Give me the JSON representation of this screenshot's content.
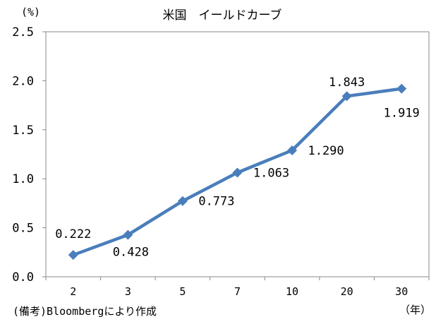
{
  "chart_data": {
    "type": "line",
    "title": "米国　イールドカーブ",
    "ylabel": "(%)",
    "xlabel": "（年）",
    "note": "(備考)Bloombergにより作成",
    "categories": [
      "2",
      "3",
      "5",
      "7",
      "10",
      "20",
      "30"
    ],
    "yticks": [
      "0.0",
      "0.5",
      "1.0",
      "1.5",
      "2.0",
      "2.5"
    ],
    "ylim": [
      0,
      2.5
    ],
    "grid": false,
    "series": [
      {
        "values": [
          0.222,
          0.428,
          0.773,
          1.063,
          1.29,
          1.843,
          1.919
        ],
        "labels": [
          "0.222",
          "0.428",
          "0.773",
          "1.063",
          "1.290",
          "1.843",
          "1.919"
        ],
        "color": "#4a7ebb"
      }
    ]
  }
}
